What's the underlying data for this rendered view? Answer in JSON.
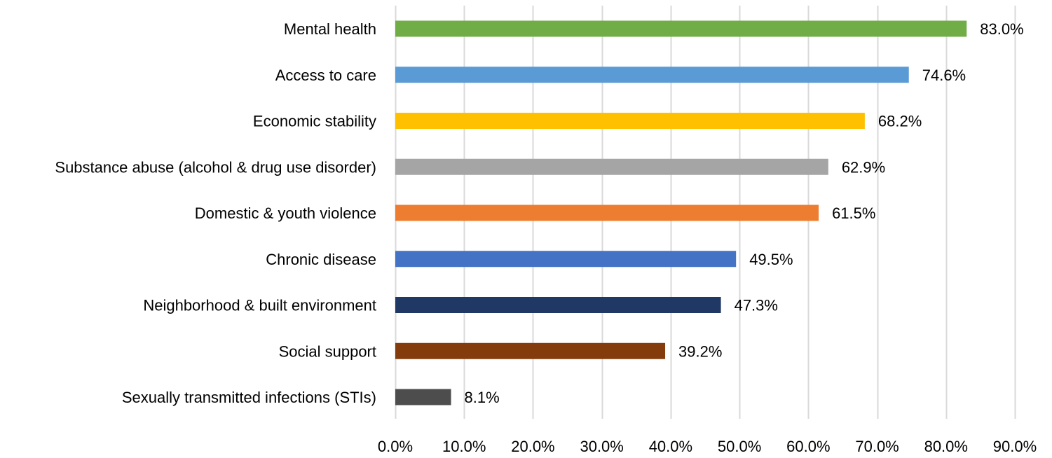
{
  "chart_data": {
    "type": "bar",
    "orientation": "horizontal",
    "title": "",
    "xlabel": "",
    "ylabel": "",
    "categories": [
      "Mental health",
      "Access to care",
      "Economic stability",
      "Substance abuse (alcohol & drug use disorder)",
      "Domestic & youth violence",
      "Chronic disease",
      "Neighborhood & built environment",
      "Social support",
      "Sexually transmitted infections (STIs)"
    ],
    "values": [
      83.0,
      74.6,
      68.2,
      62.9,
      61.5,
      49.5,
      47.3,
      39.2,
      8.1
    ],
    "value_labels": [
      "83.0%",
      "74.6%",
      "68.2%",
      "62.9%",
      "61.5%",
      "49.5%",
      "47.3%",
      "39.2%",
      "8.1%"
    ],
    "bar_colors": [
      "#70AD47",
      "#5B9BD5",
      "#FFC000",
      "#A5A5A5",
      "#ED7D31",
      "#4472C4",
      "#203864",
      "#843C0C",
      "#4D4D4D"
    ],
    "xlim": [
      0,
      90
    ],
    "x_ticks": [
      0,
      10,
      20,
      30,
      40,
      50,
      60,
      70,
      80,
      90
    ],
    "x_tick_labels": [
      "0.0%",
      "10.0%",
      "20.0%",
      "30.0%",
      "40.0%",
      "50.0%",
      "60.0%",
      "70.0%",
      "80.0%",
      "90.0%"
    ],
    "grid": true,
    "grid_color": "#D9D9D9",
    "legend": "none"
  }
}
